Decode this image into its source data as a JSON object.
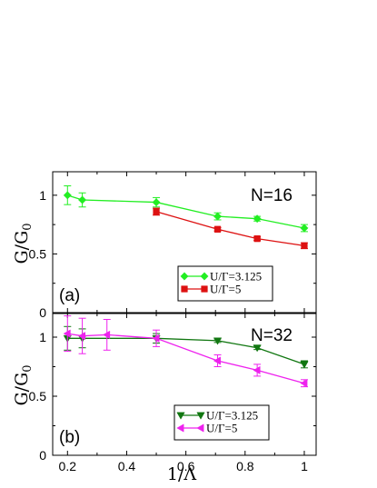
{
  "chart_data": [
    {
      "type": "line",
      "panel_label": "(a)",
      "annotation": "N=16",
      "ylabel": "G/G",
      "ylabel_sub": "0",
      "xlim": [
        0.15,
        1.04
      ],
      "ylim": [
        0,
        1.2
      ],
      "yticks": [
        0,
        0.5,
        1
      ],
      "ytick_labels": [
        "0",
        "0.5",
        "1"
      ],
      "legend_position": "lower-center",
      "series": [
        {
          "name": "U/Γ=3.125",
          "color": "#22ee22",
          "marker": "diamond",
          "x": [
            0.2,
            0.25,
            0.5,
            0.7071,
            0.8409,
            1.0
          ],
          "y": [
            1.0,
            0.96,
            0.94,
            0.82,
            0.8,
            0.72
          ],
          "err": [
            0.08,
            0.06,
            0.04,
            0.03,
            0.02,
            0.03
          ]
        },
        {
          "name": "U/Γ=5",
          "color": "#dd1111",
          "marker": "square",
          "x": [
            0.5,
            0.7071,
            0.8409,
            1.0
          ],
          "y": [
            0.86,
            0.71,
            0.63,
            0.57
          ],
          "err": [
            0.03,
            0.015,
            0.015,
            0.025
          ]
        }
      ]
    },
    {
      "type": "line",
      "panel_label": "(b)",
      "annotation": "N=32",
      "ylabel": "G/G",
      "ylabel_sub": "0",
      "xlabel": "1/Λ",
      "xlim": [
        0.15,
        1.04
      ],
      "ylim": [
        0,
        1.2
      ],
      "xticks": [
        0.2,
        0.4,
        0.6,
        0.8,
        1.0
      ],
      "xtick_labels": [
        "0.2",
        "0.4",
        "0.6",
        "0.8",
        "1"
      ],
      "yticks": [
        0,
        0.5,
        1
      ],
      "ytick_labels": [
        "0",
        "0.5",
        "1"
      ],
      "legend_position": "lower-center",
      "series": [
        {
          "name": "U/Γ=3.125",
          "color": "#117711",
          "marker": "triangle-down",
          "x": [
            0.2,
            0.25,
            0.5,
            0.7071,
            0.8409,
            1.0
          ],
          "y": [
            0.99,
            0.99,
            0.99,
            0.97,
            0.91,
            0.77
          ],
          "err": [
            0.1,
            0.08,
            0.04,
            0.015,
            0.015,
            0.03
          ]
        },
        {
          "name": "U/Γ=5",
          "color": "#ee22ee",
          "marker": "triangle-left",
          "x": [
            0.2,
            0.25,
            0.3333,
            0.5,
            0.7071,
            0.8409,
            1.0
          ],
          "y": [
            1.03,
            1.01,
            1.02,
            0.99,
            0.8,
            0.72,
            0.61
          ],
          "err": [
            0.15,
            0.15,
            0.13,
            0.07,
            0.05,
            0.05,
            0.03
          ]
        }
      ]
    }
  ]
}
